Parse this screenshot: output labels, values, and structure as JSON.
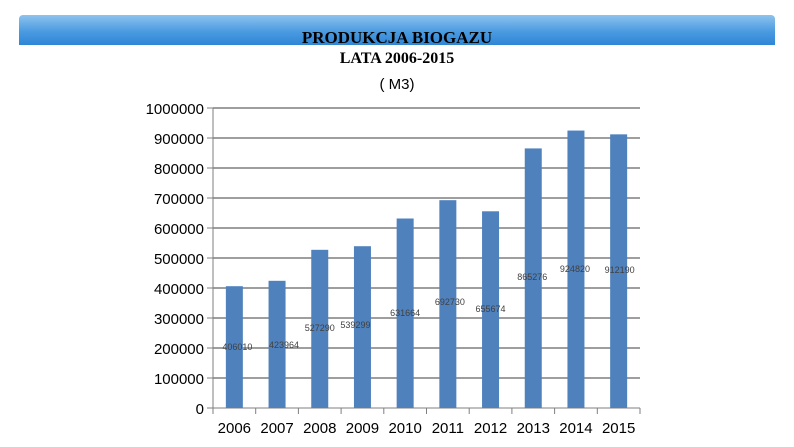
{
  "chart_data": {
    "type": "bar",
    "title_lines": [
      "PRODUKCJA BIOGAZU",
      "LATA 2006-2015",
      "( M3)"
    ],
    "categories": [
      "2006",
      "2007",
      "2008",
      "2009",
      "2010",
      "2011",
      "2012",
      "2013",
      "2014",
      "2015"
    ],
    "values": [
      406010,
      423964,
      527290,
      539299,
      631664,
      692730,
      655674,
      865276,
      924820,
      912190
    ],
    "data_labels": [
      "406010",
      "423964",
      "527290",
      "539299",
      "631664",
      "692730",
      "655674",
      "865276",
      "924820",
      "912190"
    ],
    "ylim": [
      0,
      1000000
    ],
    "yticks": [
      0,
      100000,
      200000,
      300000,
      400000,
      500000,
      600000,
      700000,
      800000,
      900000,
      1000000
    ],
    "ytick_labels": [
      "0",
      "100000",
      "200000",
      "300000",
      "400000",
      "500000",
      "600000",
      "700000",
      "800000",
      "900000",
      "1000000"
    ],
    "grid": true,
    "xlabel": "",
    "ylabel": "",
    "colors": {
      "bar": "#4f81bd",
      "grid": "#7f7f7f",
      "axis": "#7f7f7f",
      "header": "#3b8fdb"
    }
  }
}
